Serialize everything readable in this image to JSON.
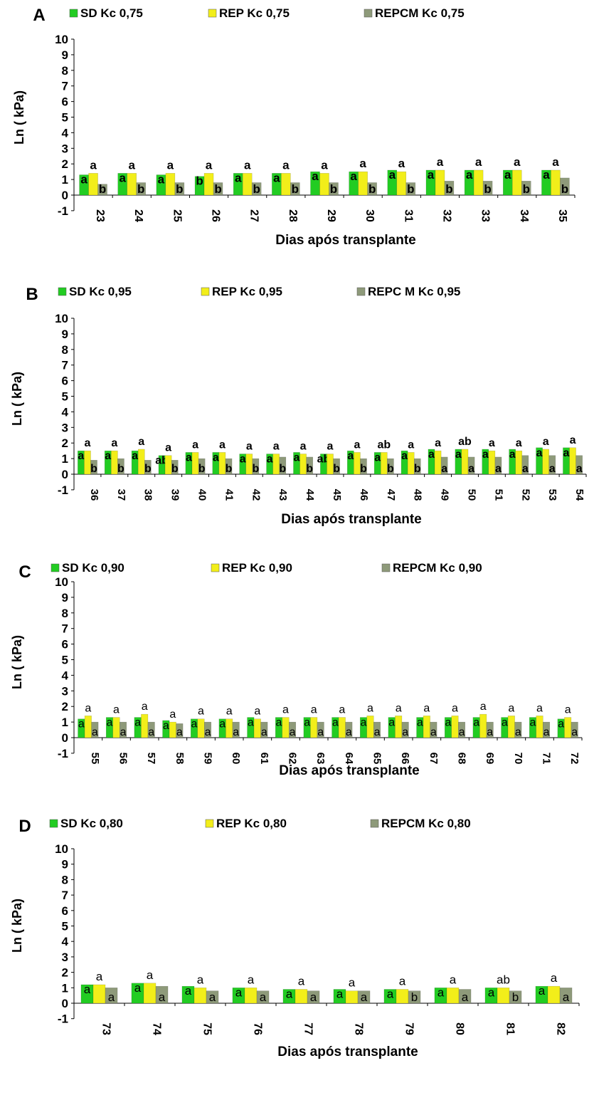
{
  "chart_data": [
    {
      "type": "bar",
      "panel_label": "A",
      "xlabel": "Dias após transplante",
      "ylabel": "Ln ( kPa)",
      "ylim": [
        -1,
        10
      ],
      "yticks": [
        "-1",
        "0",
        "1",
        "2",
        "3",
        "4",
        "5",
        "6",
        "7",
        "8",
        "9",
        "10"
      ],
      "legend_position": "top",
      "categories": [
        "23",
        "24",
        "25",
        "26",
        "27",
        "28",
        "29",
        "30",
        "31",
        "32",
        "33",
        "34",
        "35"
      ],
      "series": [
        {
          "name": "SD Kc 0,75",
          "color": "#22cc22",
          "values": [
            1.3,
            1.4,
            1.3,
            1.2,
            1.4,
            1.4,
            1.5,
            1.5,
            1.6,
            1.6,
            1.6,
            1.6,
            1.6
          ],
          "letters": [
            "a",
            "a",
            "a",
            "b",
            "a",
            "a",
            "a",
            "a",
            "a",
            "a",
            "a",
            "a",
            "a"
          ]
        },
        {
          "name": "REP Kc 0,75",
          "color": "#f2ee1a",
          "values": [
            1.4,
            1.4,
            1.4,
            1.4,
            1.4,
            1.4,
            1.4,
            1.5,
            1.5,
            1.6,
            1.6,
            1.6,
            1.6
          ],
          "letters": [
            "a",
            "a",
            "a",
            "a",
            "a",
            "a",
            "a",
            "a",
            "a",
            "a",
            "a",
            "a",
            "a"
          ]
        },
        {
          "name": "REPCM Kc 0,75",
          "color": "#8e9a7a",
          "values": [
            0.7,
            0.8,
            0.8,
            0.8,
            0.8,
            0.8,
            0.8,
            0.8,
            0.8,
            0.9,
            0.9,
            0.9,
            1.1
          ],
          "letters": [
            "b",
            "b",
            "b",
            "b",
            "b",
            "b",
            "b",
            "b",
            "b",
            "b",
            "b",
            "b",
            "b"
          ]
        }
      ]
    },
    {
      "type": "bar",
      "panel_label": "B",
      "xlabel": "Dias após transplante",
      "ylabel": "Ln ( kPa)",
      "ylim": [
        -1,
        10
      ],
      "yticks": [
        "-1",
        "0",
        "1",
        "2",
        "3",
        "4",
        "5",
        "6",
        "7",
        "8",
        "9",
        "10"
      ],
      "legend_position": "top",
      "categories": [
        "36",
        "37",
        "38",
        "39",
        "40",
        "41",
        "42",
        "43",
        "44",
        "45",
        "46",
        "47",
        "48",
        "49",
        "50",
        "51",
        "52",
        "53",
        "54"
      ],
      "series": [
        {
          "name": "SD Kc 0,95",
          "color": "#22cc22",
          "values": [
            1.5,
            1.5,
            1.5,
            1.2,
            1.4,
            1.4,
            1.3,
            1.3,
            1.4,
            1.3,
            1.5,
            1.4,
            1.5,
            1.6,
            1.6,
            1.6,
            1.6,
            1.7,
            1.7
          ],
          "letters": [
            "a",
            "a",
            "a",
            "ab",
            "a",
            "a",
            "a",
            "a",
            "a",
            "ab",
            "a",
            "a",
            "a",
            "a",
            "a",
            "a",
            "a",
            "a",
            "a"
          ]
        },
        {
          "name": "REP Kc 0,95",
          "color": "#f2ee1a",
          "values": [
            1.5,
            1.5,
            1.6,
            1.2,
            1.4,
            1.4,
            1.3,
            1.3,
            1.3,
            1.3,
            1.4,
            1.4,
            1.4,
            1.5,
            1.6,
            1.5,
            1.5,
            1.6,
            1.7
          ],
          "letters": [
            "a",
            "a",
            "a",
            "a",
            "a",
            "a",
            "a",
            "a",
            "a",
            "a",
            "a",
            "ab",
            "a",
            "a",
            "ab",
            "a",
            "a",
            "a",
            "a"
          ]
        },
        {
          "name": "REPC M Kc 0,95",
          "color": "#8e9a7a",
          "values": [
            0.9,
            1.0,
            0.9,
            0.9,
            1.0,
            1.0,
            1.0,
            1.1,
            1.1,
            1.0,
            1.0,
            1.0,
            1.0,
            1.1,
            1.1,
            1.1,
            1.2,
            1.2,
            1.2
          ],
          "letters": [
            "b",
            "b",
            "b",
            "b",
            "b",
            "b",
            "b",
            "b",
            "b",
            "b",
            "b",
            "b",
            "b",
            "a",
            "a",
            "a",
            "a",
            "a",
            "a"
          ]
        }
      ]
    },
    {
      "type": "bar",
      "panel_label": "C",
      "xlabel": "Dias após transplante",
      "ylabel": "Ln ( kPa)",
      "ylim": [
        -1,
        10
      ],
      "yticks": [
        "-1",
        "0",
        "1",
        "2",
        "3",
        "4",
        "5",
        "6",
        "7",
        "8",
        "9",
        "10"
      ],
      "legend_position": "top",
      "categories": [
        "55",
        "56",
        "57",
        "58",
        "59",
        "60",
        "61",
        "62",
        "63",
        "64",
        "65",
        "66",
        "67",
        "68",
        "69",
        "70",
        "71",
        "72"
      ],
      "series": [
        {
          "name": "SD Kc 0,90",
          "color": "#22cc22",
          "values": [
            1.2,
            1.3,
            1.3,
            1.1,
            1.2,
            1.2,
            1.3,
            1.3,
            1.3,
            1.3,
            1.3,
            1.3,
            1.3,
            1.3,
            1.3,
            1.3,
            1.3,
            1.2
          ],
          "letters": [
            "a",
            "a",
            "a",
            "a",
            "a",
            "a",
            "a",
            "a",
            "a",
            "a",
            "a",
            "a",
            "a",
            "a",
            "a",
            "a",
            "a",
            "a"
          ]
        },
        {
          "name": "REP Kc 0,90",
          "color": "#f2ee1a",
          "values": [
            1.4,
            1.3,
            1.5,
            1.0,
            1.2,
            1.2,
            1.2,
            1.3,
            1.3,
            1.3,
            1.4,
            1.4,
            1.4,
            1.4,
            1.5,
            1.4,
            1.4,
            1.3
          ],
          "letters": [
            "a",
            "a",
            "a",
            "a",
            "a",
            "a",
            "a",
            "a",
            "a",
            "a",
            "a",
            "a",
            "a",
            "a",
            "a",
            "a",
            "a",
            "a"
          ]
        },
        {
          "name": "REPCM Kc 0,90",
          "color": "#8e9a7a",
          "values": [
            1.0,
            1.0,
            1.0,
            0.9,
            1.0,
            1.0,
            1.0,
            1.0,
            1.0,
            1.0,
            1.0,
            1.0,
            1.0,
            1.0,
            1.0,
            1.0,
            1.0,
            1.0
          ],
          "letters": [
            "a",
            "a",
            "a",
            "a",
            "a",
            "a",
            "a",
            "a",
            "a",
            "a",
            "a",
            "a",
            "a",
            "a",
            "a",
            "a",
            "a",
            "a"
          ]
        }
      ]
    },
    {
      "type": "bar",
      "panel_label": "D",
      "xlabel": "Dias após transplante",
      "ylabel": "Ln ( kPa)",
      "ylim": [
        -1,
        10
      ],
      "yticks": [
        "-1",
        "0",
        "1",
        "2",
        "3",
        "4",
        "5",
        "6",
        "7",
        "8",
        "9",
        "10"
      ],
      "legend_position": "top",
      "categories": [
        "73",
        "74",
        "75",
        "76",
        "77",
        "78",
        "79",
        "80",
        "81",
        "82"
      ],
      "series": [
        {
          "name": "SD Kc 0,80",
          "color": "#22cc22",
          "values": [
            1.2,
            1.3,
            1.1,
            1.0,
            0.9,
            0.9,
            0.9,
            1.0,
            1.0,
            1.1
          ],
          "letters": [
            "a",
            "a",
            "a",
            "a",
            "a",
            "a",
            "a",
            "a",
            "a",
            "a"
          ]
        },
        {
          "name": "REP Kc 0,80",
          "color": "#f2ee1a",
          "values": [
            1.2,
            1.3,
            1.0,
            1.0,
            0.9,
            0.8,
            0.9,
            1.0,
            1.0,
            1.1
          ],
          "letters": [
            "a",
            "a",
            "a",
            "a",
            "a",
            "a",
            "a",
            "a",
            "ab",
            "a"
          ]
        },
        {
          "name": "REPCM Kc 0,80",
          "color": "#8e9a7a",
          "values": [
            1.0,
            1.1,
            0.8,
            0.8,
            0.8,
            0.8,
            0.8,
            0.9,
            0.8,
            1.0
          ],
          "letters": [
            "a",
            "a",
            "a",
            "a",
            "a",
            "a",
            "b",
            "a",
            "b",
            "a"
          ]
        }
      ]
    }
  ]
}
